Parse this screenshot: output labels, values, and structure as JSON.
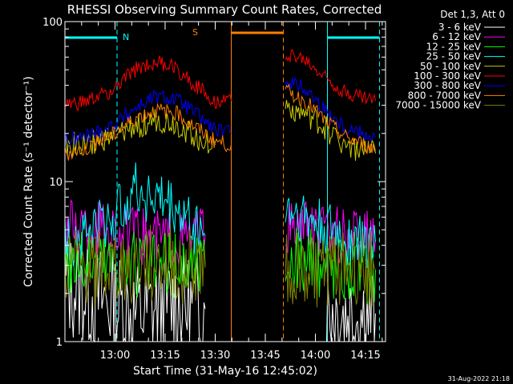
{
  "chart_data": {
    "type": "line",
    "title": "RHESSI Observing Summary Count Rates, Corrected",
    "xlabel": "Start Time (31-May-16 12:45:02)",
    "ylabel": "Corrected Count Rate (s⁻¹ detector⁻¹)",
    "yscale": "log",
    "ylim": [
      1,
      100
    ],
    "xlim_minutes": [
      12.75,
      14.35
    ],
    "x_ticks": [
      "13:00",
      "13:15",
      "13:30",
      "13:45",
      "14:00",
      "14:15"
    ],
    "x_tick_values": [
      13.0,
      13.25,
      13.5,
      13.75,
      14.0,
      14.25
    ],
    "y_ticks": [
      "1",
      "10",
      "100"
    ],
    "y_tick_values": [
      1,
      10,
      100
    ],
    "legend_title": "Det 1,3, Att 0",
    "legend_position": "outside-right",
    "series": [
      {
        "name": "3 - 6 keV",
        "color": "#ffffff",
        "segments": [
          [
            [
              12.75,
              2.3
            ],
            [
              13.0,
              1.7
            ],
            [
              13.1,
              1.5
            ],
            [
              13.2,
              1.6
            ],
            [
              13.3,
              1.7
            ],
            [
              13.45,
              1.6
            ]
          ],
          [
            [
              14.05,
              1.6
            ],
            [
              14.15,
              1.5
            ],
            [
              14.3,
              1.5
            ]
          ]
        ]
      },
      {
        "name": "6 - 12 keV",
        "color": "#ff00ff",
        "segments": [
          [
            [
              12.75,
              5.2
            ],
            [
              13.0,
              5.0
            ],
            [
              13.1,
              4.5
            ],
            [
              13.2,
              4.5
            ],
            [
              13.3,
              4.5
            ],
            [
              13.45,
              4.6
            ]
          ],
          [
            [
              13.85,
              5.2
            ],
            [
              14.05,
              4.8
            ],
            [
              14.15,
              4.5
            ],
            [
              14.3,
              4.3
            ]
          ]
        ]
      },
      {
        "name": "12 - 25 keV",
        "color": "#00ff00",
        "segments": [
          [
            [
              12.75,
              3.2
            ],
            [
              13.0,
              3.1
            ],
            [
              13.1,
              2.9
            ],
            [
              13.2,
              2.9
            ],
            [
              13.3,
              2.9
            ],
            [
              13.45,
              3.0
            ]
          ],
          [
            [
              13.85,
              3.2
            ],
            [
              14.05,
              3.0
            ],
            [
              14.15,
              2.9
            ],
            [
              14.3,
              2.8
            ]
          ]
        ]
      },
      {
        "name": "25 - 50 keV",
        "color": "#00ffff",
        "segments": [
          [
            [
              12.75,
              4.2
            ],
            [
              13.0,
              6.0
            ],
            [
              13.08,
              9.0
            ],
            [
              13.15,
              8.5
            ],
            [
              13.25,
              7.5
            ],
            [
              13.35,
              6.0
            ],
            [
              13.45,
              4.6
            ]
          ],
          [
            [
              13.85,
              7.0
            ],
            [
              14.05,
              5.0
            ],
            [
              14.15,
              4.5
            ],
            [
              14.3,
              4.2
            ]
          ]
        ]
      },
      {
        "name": "50 - 100 keV",
        "color": "#cccc00",
        "segments": [
          [
            [
              12.75,
              17
            ],
            [
              12.85,
              17
            ],
            [
              13.0,
              19
            ],
            [
              13.1,
              22
            ],
            [
              13.2,
              24
            ],
            [
              13.3,
              23
            ],
            [
              13.4,
              19
            ],
            [
              13.5,
              17
            ]
          ],
          [
            [
              13.85,
              30
            ],
            [
              14.0,
              24
            ],
            [
              14.1,
              19
            ],
            [
              14.2,
              16
            ],
            [
              14.3,
              15
            ]
          ]
        ]
      },
      {
        "name": "100 - 300 keV",
        "color": "#ff0000",
        "segments": [
          [
            [
              12.75,
              30
            ],
            [
              12.85,
              31
            ],
            [
              13.0,
              38
            ],
            [
              13.1,
              50
            ],
            [
              13.2,
              56
            ],
            [
              13.3,
              52
            ],
            [
              13.4,
              40
            ],
            [
              13.5,
              32
            ],
            [
              13.58,
              32
            ]
          ],
          [
            [
              13.85,
              64
            ],
            [
              13.95,
              57
            ],
            [
              14.05,
              45
            ],
            [
              14.15,
              36
            ],
            [
              14.3,
              32
            ]
          ]
        ]
      },
      {
        "name": "300 - 800 keV",
        "color": "#0000ff",
        "segments": [
          [
            [
              12.75,
              18
            ],
            [
              12.85,
              19
            ],
            [
              13.0,
              23
            ],
            [
              13.1,
              29
            ],
            [
              13.2,
              34
            ],
            [
              13.3,
              33
            ],
            [
              13.4,
              27
            ],
            [
              13.5,
              21
            ],
            [
              13.58,
              20
            ]
          ],
          [
            [
              13.85,
              44
            ],
            [
              13.95,
              38
            ],
            [
              14.05,
              28
            ],
            [
              14.15,
              22
            ],
            [
              14.3,
              19
            ]
          ]
        ]
      },
      {
        "name": "800 - 7000 keV",
        "color": "#ff8000",
        "segments": [
          [
            [
              12.75,
              15
            ],
            [
              12.85,
              16
            ],
            [
              13.0,
              20
            ],
            [
              13.1,
              25
            ],
            [
              13.2,
              28
            ],
            [
              13.3,
              27
            ],
            [
              13.4,
              22
            ],
            [
              13.5,
              18
            ],
            [
              13.58,
              17
            ]
          ],
          [
            [
              13.85,
              37
            ],
            [
              13.95,
              32
            ],
            [
              14.05,
              24
            ],
            [
              14.15,
              19
            ],
            [
              14.3,
              16
            ]
          ]
        ]
      },
      {
        "name": "7000 - 15000 keV",
        "color": "#808000",
        "segments": [
          [
            [
              12.75,
              2.9
            ],
            [
              13.0,
              2.8
            ],
            [
              13.1,
              3.0
            ],
            [
              13.2,
              3.1
            ],
            [
              13.3,
              3.0
            ],
            [
              13.45,
              2.9
            ]
          ],
          [
            [
              13.85,
              3.0
            ],
            [
              14.05,
              2.8
            ],
            [
              14.15,
              2.9
            ],
            [
              14.3,
              2.8
            ]
          ]
        ]
      }
    ],
    "annotations": [
      {
        "text": "N",
        "color": "#00ffff"
      },
      {
        "text": "S",
        "color": "#ff8000"
      }
    ],
    "footer_date": "31-Aug-2022 21:18"
  }
}
